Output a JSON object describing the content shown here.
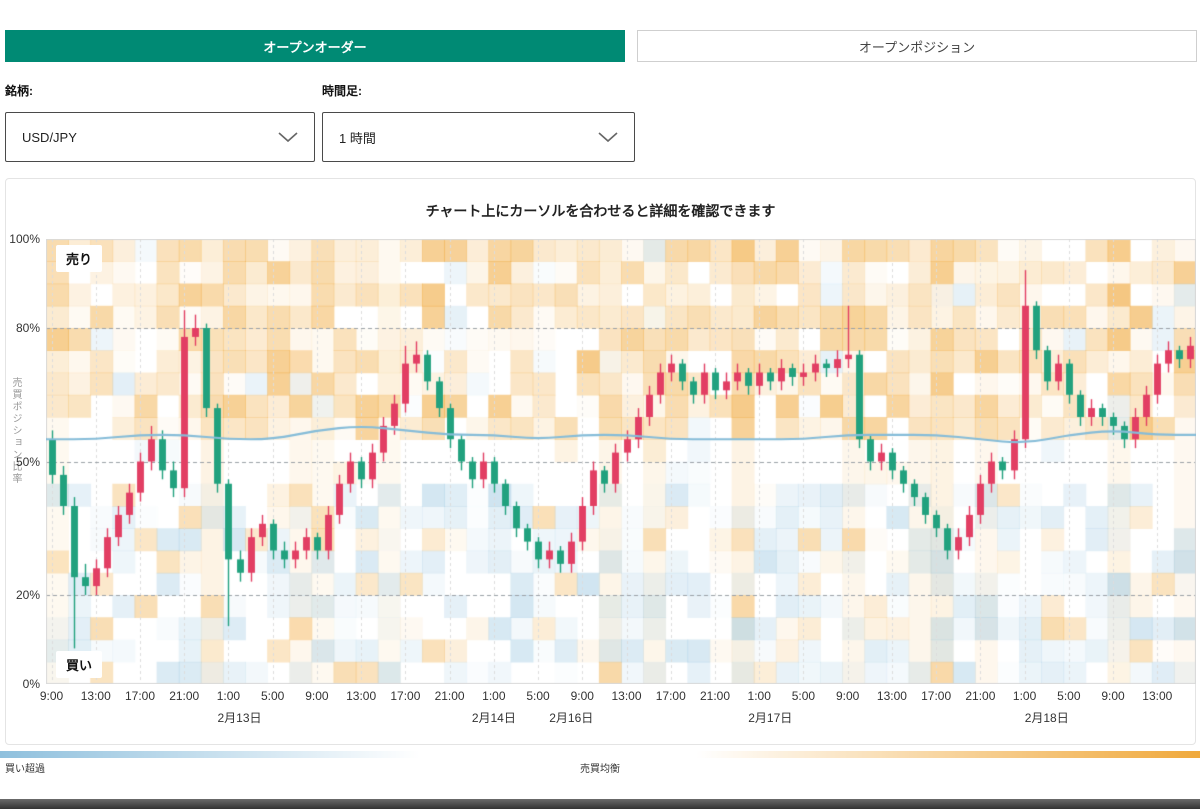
{
  "tabs": {
    "open_order": "オープンオーダー",
    "open_position": "オープンポジション"
  },
  "filters": {
    "symbol_label": "銘柄:",
    "symbol_value": "USD/JPY",
    "timeframe_label": "時間足:",
    "timeframe_value": "1 時間"
  },
  "chart": {
    "hint_title": "チャート上にカーソルを合わせると詳細を確認できます",
    "y_axis_title": "売買ポジション比率",
    "sell_label": "売り",
    "buy_label": "買い",
    "legend": {
      "buy_excess": "買い超過",
      "balance": "売買均衡"
    }
  },
  "colors": {
    "accent": "#008a74",
    "up_candle": "#e23e63",
    "down_candle": "#21a17e",
    "ma_line": "#85bcd8",
    "grid_dash": "#9aa0a6",
    "grid_vertical": "#dcdcdc",
    "plot_border": "#d9d9d9",
    "heat_sell": "#f0a93c",
    "heat_buy": "#8fc0dd"
  },
  "chart_data": {
    "type": "candlestick",
    "title": "チャート上にカーソルを合わせると詳細を確認できます",
    "ylabel": "売買ポジション比率",
    "ylim": [
      0,
      100
    ],
    "tick_interval": 4,
    "x_tick_labels": [
      "9:00",
      "13:00",
      "17:00",
      "21:00",
      "1:00",
      "5:00",
      "9:00",
      "13:00",
      "17:00",
      "21:00",
      "1:00",
      "5:00",
      "9:00",
      "13:00",
      "17:00",
      "21:00",
      "1:00",
      "5:00",
      "9:00",
      "13:00",
      "17:00",
      "21:00",
      "1:00",
      "5:00",
      "9:00",
      "13:00"
    ],
    "date_labels": [
      {
        "label": "2月13日",
        "pos": 17
      },
      {
        "label": "2月14日",
        "pos": 40
      },
      {
        "label": "2月16日",
        "pos": 47
      },
      {
        "label": "2月17日",
        "pos": 65
      },
      {
        "label": "2月18日",
        "pos": 90
      }
    ],
    "y_ticks": [
      {
        "label": "100%",
        "value": 100,
        "dashed": false
      },
      {
        "label": "80%",
        "value": 80,
        "dashed": true
      },
      {
        "label": "50%",
        "value": 50,
        "dashed": true
      },
      {
        "label": "20%",
        "value": 20,
        "dashed": true
      },
      {
        "label": "0%",
        "value": 0,
        "dashed": false
      }
    ],
    "candles_ohlc": [
      [
        55,
        57,
        45,
        47
      ],
      [
        47,
        49,
        38,
        40
      ],
      [
        40,
        42,
        8,
        24
      ],
      [
        24,
        27,
        20,
        22
      ],
      [
        22,
        28,
        20,
        26
      ],
      [
        26,
        35,
        24,
        33
      ],
      [
        33,
        40,
        31,
        38
      ],
      [
        38,
        45,
        36,
        43
      ],
      [
        43,
        52,
        41,
        50
      ],
      [
        50,
        58,
        48,
        55
      ],
      [
        55,
        57,
        46,
        48
      ],
      [
        48,
        50,
        42,
        44
      ],
      [
        44,
        84,
        42,
        78
      ],
      [
        78,
        83,
        76,
        80
      ],
      [
        80,
        81,
        60,
        62
      ],
      [
        62,
        63,
        43,
        45
      ],
      [
        45,
        46,
        13,
        28
      ],
      [
        28,
        30,
        23,
        25
      ],
      [
        25,
        35,
        23,
        33
      ],
      [
        33,
        38,
        31,
        36
      ],
      [
        36,
        37,
        28,
        30
      ],
      [
        30,
        32,
        26,
        28
      ],
      [
        28,
        32,
        26,
        30
      ],
      [
        30,
        35,
        28,
        33
      ],
      [
        33,
        34,
        28,
        30
      ],
      [
        30,
        40,
        28,
        38
      ],
      [
        38,
        47,
        36,
        45
      ],
      [
        45,
        52,
        43,
        50
      ],
      [
        50,
        51,
        44,
        46
      ],
      [
        46,
        54,
        44,
        52
      ],
      [
        52,
        60,
        50,
        58
      ],
      [
        58,
        65,
        56,
        63
      ],
      [
        63,
        76,
        61,
        72
      ],
      [
        72,
        77,
        70,
        74
      ],
      [
        74,
        75,
        66,
        68
      ],
      [
        68,
        69,
        60,
        62
      ],
      [
        62,
        63,
        53,
        55
      ],
      [
        55,
        56,
        48,
        50
      ],
      [
        50,
        51,
        44,
        46
      ],
      [
        46,
        52,
        44,
        50
      ],
      [
        50,
        51,
        43,
        45
      ],
      [
        45,
        46,
        38,
        40
      ],
      [
        40,
        41,
        33,
        35
      ],
      [
        35,
        36,
        30,
        32
      ],
      [
        32,
        33,
        26,
        28
      ],
      [
        28,
        32,
        26,
        30
      ],
      [
        30,
        31,
        25,
        27
      ],
      [
        27,
        34,
        25,
        32
      ],
      [
        32,
        42,
        30,
        40
      ],
      [
        40,
        50,
        38,
        48
      ],
      [
        48,
        49,
        43,
        45
      ],
      [
        45,
        54,
        43,
        52
      ],
      [
        52,
        57,
        50,
        55
      ],
      [
        55,
        62,
        53,
        60
      ],
      [
        60,
        67,
        58,
        65
      ],
      [
        65,
        72,
        63,
        70
      ],
      [
        70,
        74,
        68,
        72
      ],
      [
        72,
        73,
        66,
        68
      ],
      [
        68,
        69,
        63,
        65
      ],
      [
        65,
        72,
        63,
        70
      ],
      [
        70,
        71,
        64,
        66
      ],
      [
        66,
        70,
        64,
        68
      ],
      [
        68,
        72,
        66,
        70
      ],
      [
        70,
        71,
        65,
        67
      ],
      [
        67,
        72,
        65,
        70
      ],
      [
        70,
        71,
        66,
        68
      ],
      [
        68,
        73,
        66,
        71
      ],
      [
        71,
        72,
        67,
        69
      ],
      [
        69,
        72,
        67,
        70
      ],
      [
        70,
        74,
        68,
        72
      ],
      [
        72,
        73,
        69,
        71
      ],
      [
        71,
        75,
        69,
        73
      ],
      [
        73,
        85,
        71,
        74
      ],
      [
        74,
        75,
        53,
        55
      ],
      [
        55,
        56,
        48,
        50
      ],
      [
        50,
        54,
        48,
        52
      ],
      [
        52,
        53,
        46,
        48
      ],
      [
        48,
        49,
        43,
        45
      ],
      [
        45,
        46,
        40,
        42
      ],
      [
        42,
        43,
        36,
        38
      ],
      [
        38,
        39,
        33,
        35
      ],
      [
        35,
        36,
        28,
        30
      ],
      [
        30,
        35,
        28,
        33
      ],
      [
        33,
        40,
        31,
        38
      ],
      [
        38,
        47,
        36,
        45
      ],
      [
        45,
        52,
        43,
        50
      ],
      [
        50,
        51,
        46,
        48
      ],
      [
        48,
        57,
        46,
        55
      ],
      [
        55,
        93,
        53,
        85
      ],
      [
        85,
        86,
        73,
        75
      ],
      [
        75,
        76,
        66,
        68
      ],
      [
        68,
        74,
        66,
        72
      ],
      [
        72,
        73,
        63,
        65
      ],
      [
        65,
        66,
        58,
        60
      ],
      [
        60,
        64,
        58,
        62
      ],
      [
        62,
        63,
        58,
        60
      ],
      [
        60,
        61,
        56,
        58
      ],
      [
        58,
        59,
        53,
        55
      ],
      [
        55,
        62,
        53,
        60
      ],
      [
        60,
        67,
        58,
        65
      ],
      [
        65,
        74,
        63,
        72
      ],
      [
        72,
        77,
        70,
        75
      ],
      [
        75,
        76,
        71,
        73
      ],
      [
        73,
        78,
        71,
        76
      ]
    ],
    "ma_line": [
      55,
      55,
      56,
      56,
      55,
      55,
      57,
      58,
      57,
      56,
      56,
      55,
      56,
      56,
      55,
      55,
      55,
      55,
      56,
      56,
      56,
      55,
      54,
      56,
      57,
      56
    ],
    "heatmap": {
      "rows": 20,
      "cols": 52,
      "seed": 7
    }
  }
}
